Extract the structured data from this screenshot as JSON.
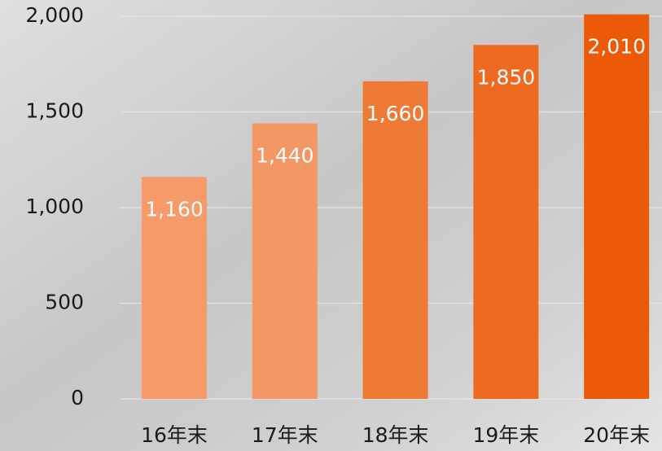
{
  "chart_data": {
    "type": "bar",
    "categories": [
      "16年末",
      "17年末",
      "18年末",
      "19年末",
      "20年末"
    ],
    "values": [
      1160,
      1440,
      1660,
      1850,
      2010
    ],
    "value_labels": [
      "1,160",
      "1,440",
      "1,660",
      "1,850",
      "2,010"
    ],
    "colors": [
      "#f59a68",
      "#f39764",
      "#ef7a36",
      "#ed6a20",
      "#ec5a08"
    ],
    "ylim": [
      0,
      2000
    ],
    "yticks": [
      0,
      500,
      {
        "value": 1000,
        "label": "1,000"
      },
      {
        "value": 1500,
        "label": "1,500"
      },
      {
        "value": 2000,
        "label": "2,000"
      }
    ],
    "grid": true
  }
}
